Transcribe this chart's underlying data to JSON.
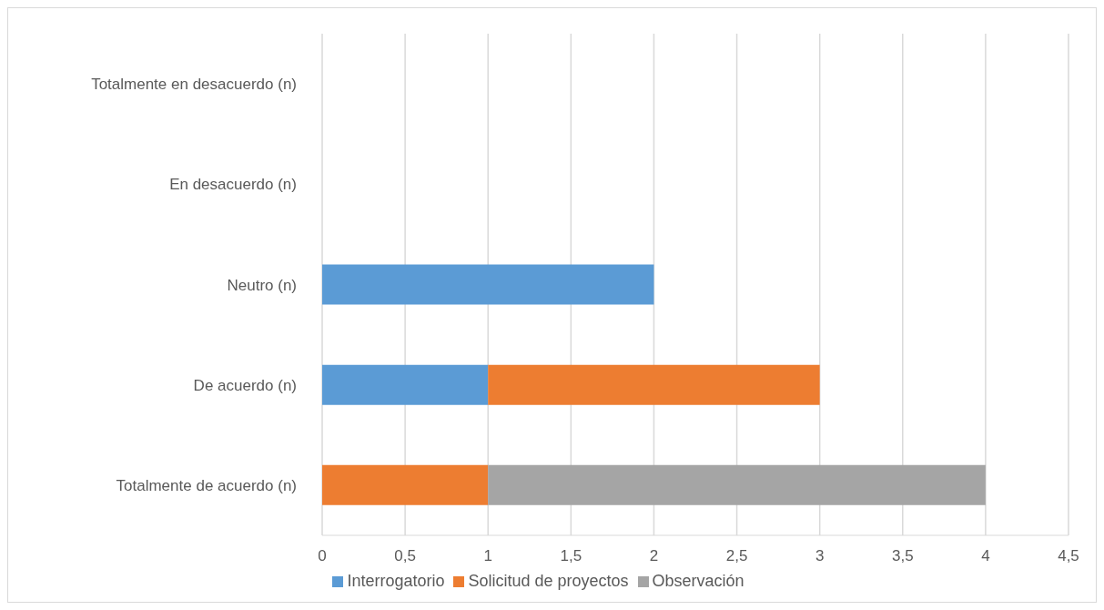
{
  "chart_data": {
    "type": "bar",
    "orientation": "horizontal",
    "stacked": true,
    "categories": [
      "Totalmente en desacuerdo (n)",
      "En desacuerdo (n)",
      "Neutro (n)",
      "De acuerdo (n)",
      "Totalmente de acuerdo (n)"
    ],
    "series": [
      {
        "name": "Interrogatorio",
        "color": "#5b9bd5",
        "values": [
          null,
          null,
          2,
          1,
          null
        ]
      },
      {
        "name": "Solicitud de proyectos",
        "color": "#ed7d31",
        "values": [
          null,
          null,
          null,
          2,
          1
        ]
      },
      {
        "name": "Observación",
        "color": "#a5a5a5",
        "values": [
          null,
          null,
          null,
          null,
          3
        ]
      }
    ],
    "xlim": [
      0,
      4.5
    ],
    "xticks": [
      0,
      {
        "value": 0.5,
        "label": "0,5"
      },
      1,
      {
        "value": 1.5,
        "label": "1,5"
      },
      2,
      {
        "value": 2.5,
        "label": "2,5"
      },
      3,
      {
        "value": 3.5,
        "label": "3,5"
      },
      4,
      {
        "value": 4.5,
        "label": "4,5"
      }
    ],
    "grid": "x",
    "legend": "bottom"
  }
}
